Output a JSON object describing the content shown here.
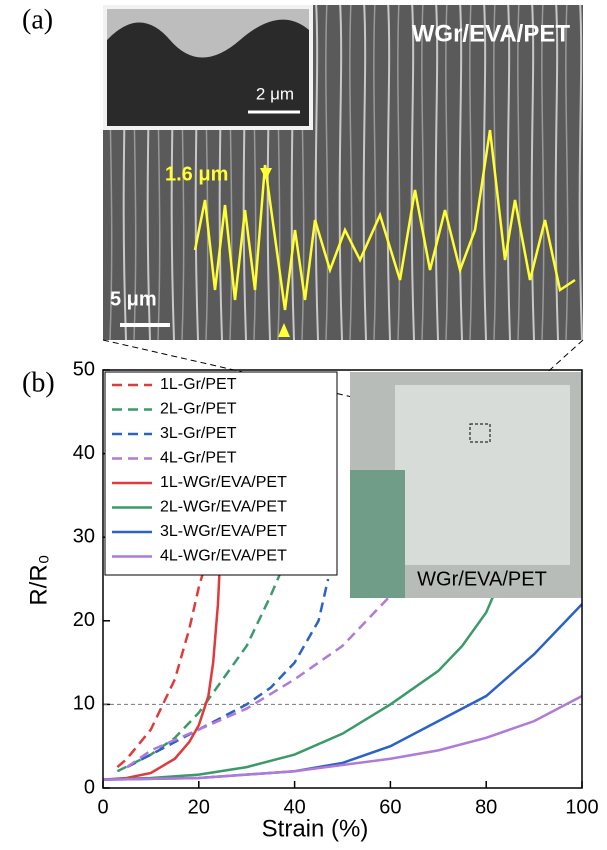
{
  "image_panel": {
    "label": "(a)",
    "title": "WGr/EVA/PET",
    "inset_scale": "2 μm",
    "scale": "5 μm",
    "amplitude": "1.6 μm"
  },
  "chart_data": {
    "type": "line",
    "panel_label": "(b)",
    "photo_label": "WGr/EVA/PET",
    "xlabel": "Strain (%)",
    "ylabel": "R/R₀",
    "xlim": [
      0,
      100
    ],
    "ylim": [
      0,
      50
    ],
    "xticks": [
      0,
      20,
      40,
      60,
      80,
      100
    ],
    "yticks": [
      0,
      10,
      20,
      30,
      40,
      50
    ],
    "reference_line": 10,
    "legend": "top-left",
    "series": [
      {
        "name": "1L-Gr/PET",
        "color": "#e03a3a",
        "dashed": true,
        "x": [
          3,
          5,
          10,
          15,
          18,
          20,
          22
        ],
        "values": [
          2.5,
          3.5,
          7,
          13,
          19,
          24,
          28
        ]
      },
      {
        "name": "2L-Gr/PET",
        "color": "#3a9a6a",
        "dashed": true,
        "x": [
          3,
          10,
          15,
          20,
          25,
          30,
          35,
          38
        ],
        "values": [
          2,
          4,
          6,
          9,
          13,
          17,
          23,
          27
        ]
      },
      {
        "name": "3L-Gr/PET",
        "color": "#2a62c8",
        "dashed": true,
        "x": [
          5,
          10,
          15,
          20,
          25,
          30,
          35,
          40,
          45,
          47
        ],
        "values": [
          2.5,
          4,
          5.5,
          7,
          8.5,
          10,
          12,
          15,
          20,
          25
        ]
      },
      {
        "name": "4L-Gr/PET",
        "color": "#b07ad8",
        "dashed": true,
        "x": [
          5,
          10,
          20,
          30,
          40,
          50,
          55,
          60,
          63
        ],
        "values": [
          2.5,
          4.5,
          7,
          9.5,
          13,
          17,
          20,
          23,
          25
        ]
      },
      {
        "name": "1L-WGr/EVA/PET",
        "color": "#e03a3a",
        "dashed": false,
        "x": [
          0,
          5,
          10,
          15,
          18,
          20,
          22,
          23,
          24,
          24.5
        ],
        "values": [
          1,
          1.2,
          1.8,
          3.5,
          5.5,
          7.5,
          11,
          15,
          22,
          28
        ]
      },
      {
        "name": "2L-WGr/EVA/PET",
        "color": "#3a9a6a",
        "dashed": false,
        "x": [
          0,
          10,
          20,
          30,
          40,
          50,
          60,
          70,
          75,
          80,
          83
        ],
        "values": [
          1,
          1.2,
          1.6,
          2.5,
          4,
          6.5,
          10,
          14,
          17,
          21,
          25
        ]
      },
      {
        "name": "3L-WGr/EVA/PET",
        "color": "#2a62c8",
        "dashed": false,
        "x": [
          0,
          20,
          40,
          50,
          60,
          70,
          80,
          90,
          100
        ],
        "values": [
          1,
          1.2,
          2,
          3,
          5,
          8,
          11,
          16,
          22
        ]
      },
      {
        "name": "4L-WGr/EVA/PET",
        "color": "#b07ad8",
        "dashed": false,
        "x": [
          0,
          20,
          40,
          60,
          70,
          80,
          90,
          100
        ],
        "values": [
          1,
          1.2,
          2,
          3.5,
          4.5,
          6,
          8,
          11
        ]
      }
    ]
  }
}
